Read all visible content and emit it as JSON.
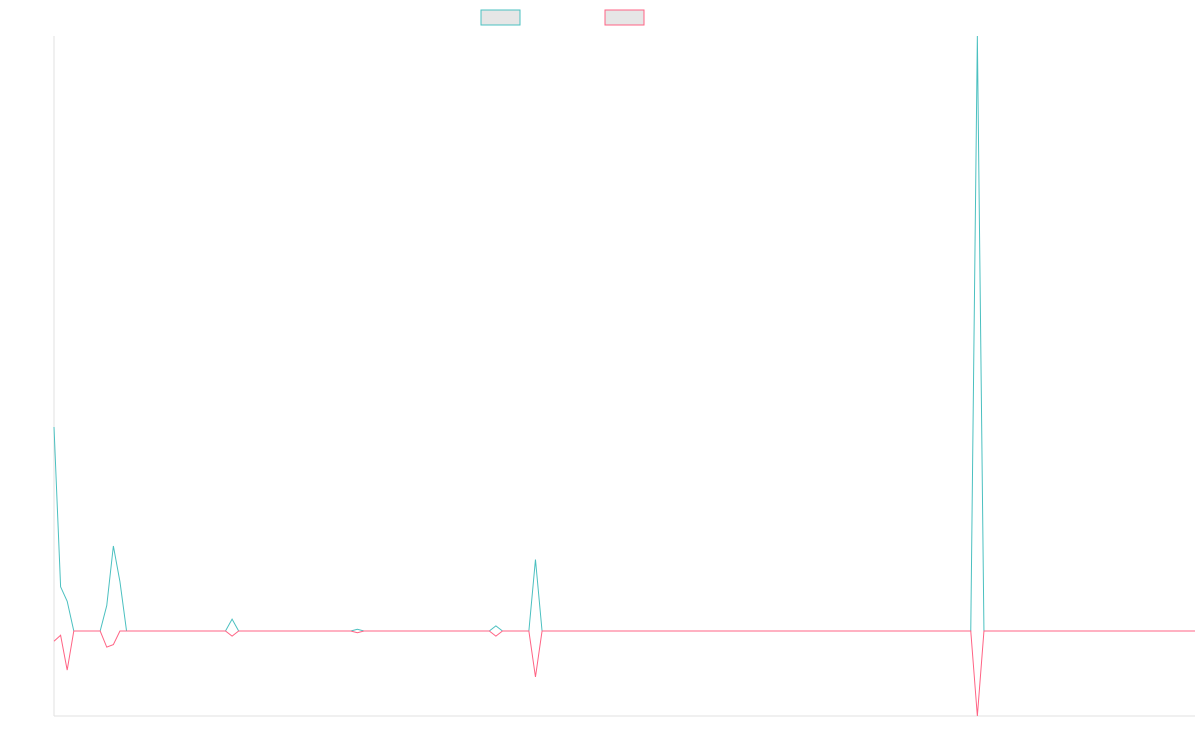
{
  "chart_data": {
    "type": "line",
    "ylim": [
      -1,
      7
    ],
    "series": [
      {
        "color": "#4bc0c0",
        "values": [
          2.4,
          0.52,
          0.35,
          0,
          0,
          0,
          0,
          0,
          0.3,
          1.0,
          0.58,
          0,
          0,
          0,
          0,
          0,
          0,
          0,
          0,
          0,
          0,
          0,
          0,
          0,
          0,
          0,
          0,
          0.14,
          0,
          0,
          0,
          0,
          0,
          0,
          0,
          0,
          0,
          0,
          0,
          0,
          0,
          0,
          0,
          0,
          0,
          0,
          0.02,
          0,
          0,
          0,
          0,
          0,
          0,
          0,
          0,
          0,
          0,
          0,
          0,
          0,
          0,
          0,
          0,
          0,
          0,
          0,
          0,
          0.06,
          0,
          0,
          0,
          0,
          0,
          0.84,
          0,
          0,
          0,
          0,
          0,
          0,
          0,
          0,
          0,
          0,
          0,
          0,
          0,
          0,
          0,
          0,
          0,
          0,
          0,
          0,
          0,
          0,
          0,
          0,
          0,
          0,
          0,
          0,
          0,
          0,
          0,
          0,
          0,
          0,
          0,
          0,
          0,
          0,
          0,
          0,
          0,
          0,
          0,
          0,
          0,
          0,
          0,
          0,
          0,
          0,
          0,
          0,
          0,
          0,
          0,
          0,
          0,
          0,
          0,
          0,
          0,
          0,
          0,
          0,
          0,
          0,
          7,
          0,
          0,
          0,
          0,
          0,
          0,
          0,
          0,
          0,
          0,
          0,
          0,
          0,
          0,
          0,
          0,
          0,
          0,
          0,
          0,
          0,
          0,
          0,
          0,
          0,
          0,
          0,
          0,
          0,
          0,
          0,
          0,
          0
        ]
      },
      {
        "color": "#ff6384",
        "values": [
          -0.12,
          -0.05,
          -0.46,
          0,
          0,
          0,
          0,
          0,
          -0.19,
          -0.16,
          0,
          0,
          0,
          0,
          0,
          0,
          0,
          0,
          0,
          0,
          0,
          0,
          0,
          0,
          0,
          0,
          0,
          -0.06,
          0,
          0,
          0,
          0,
          0,
          0,
          0,
          0,
          0,
          0,
          0,
          0,
          0,
          0,
          0,
          0,
          0,
          0,
          -0.02,
          0,
          0,
          0,
          0,
          0,
          0,
          0,
          0,
          0,
          0,
          0,
          0,
          0,
          0,
          0,
          0,
          0,
          0,
          0,
          0,
          -0.06,
          0,
          0,
          0,
          0,
          0,
          -0.54,
          0,
          0,
          0,
          0,
          0,
          0,
          0,
          0,
          0,
          0,
          0,
          0,
          0,
          0,
          0,
          0,
          0,
          0,
          0,
          0,
          0,
          0,
          0,
          0,
          0,
          0,
          0,
          0,
          0,
          0,
          0,
          0,
          0,
          0,
          0,
          0,
          0,
          0,
          0,
          0,
          0,
          0,
          0,
          0,
          0,
          0,
          0,
          0,
          0,
          0,
          0,
          0,
          0,
          0,
          0,
          0,
          0,
          0,
          0,
          0,
          0,
          0,
          0,
          0,
          0,
          0,
          -1,
          0,
          0,
          0,
          0,
          0,
          0,
          0,
          0,
          0,
          0,
          0,
          0,
          0,
          0,
          0,
          0,
          0,
          0,
          0,
          0,
          0,
          0,
          0,
          0,
          0,
          0,
          0,
          0,
          0,
          0,
          0,
          0,
          0
        ]
      }
    ]
  }
}
